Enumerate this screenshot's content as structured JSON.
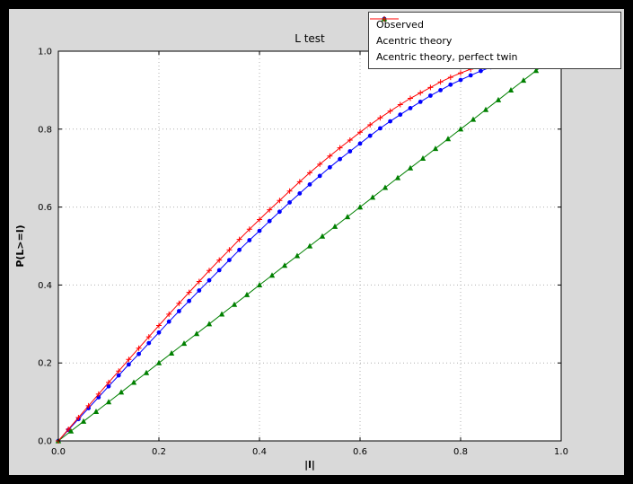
{
  "colors": {
    "outer_bg": "#000000",
    "figure_bg": "#d9d9d9",
    "axes_bg": "#ffffff",
    "frame": "#000000",
    "grid": "#b0b0b0",
    "observed": "#0000ff",
    "acentric_theory": "#008000",
    "perfect_twin": "#ff0000"
  },
  "chart_data": {
    "type": "line",
    "title": "L test",
    "xlabel": "|l|",
    "ylabel": "P(L>=l)",
    "xlim": [
      0,
      1
    ],
    "ylim": [
      0,
      1
    ],
    "xticks": [
      0,
      0.2,
      0.4,
      0.6,
      0.8,
      1.0
    ],
    "yticks": [
      0,
      0.2,
      0.4,
      0.6,
      0.8,
      1.0
    ],
    "grid": true,
    "legend_position": "upper right",
    "series": [
      {
        "name": "Observed",
        "color": "#0000ff",
        "marker": "circle",
        "x": [
          0,
          0.02,
          0.04,
          0.06,
          0.08,
          0.1,
          0.12,
          0.14,
          0.16,
          0.18,
          0.2,
          0.22,
          0.24,
          0.26,
          0.28,
          0.3,
          0.32,
          0.34,
          0.36,
          0.38,
          0.4,
          0.42,
          0.44,
          0.46,
          0.48,
          0.5,
          0.52,
          0.54,
          0.56,
          0.58,
          0.6,
          0.62,
          0.64,
          0.66,
          0.68,
          0.7,
          0.72,
          0.74,
          0.76,
          0.78,
          0.8,
          0.82,
          0.84,
          0.86
        ],
        "y": [
          0,
          0.028,
          0.056,
          0.084,
          0.112,
          0.14,
          0.168,
          0.196,
          0.223,
          0.251,
          0.278,
          0.306,
          0.333,
          0.359,
          0.386,
          0.412,
          0.438,
          0.464,
          0.49,
          0.515,
          0.539,
          0.564,
          0.588,
          0.612,
          0.635,
          0.658,
          0.68,
          0.702,
          0.723,
          0.743,
          0.763,
          0.783,
          0.802,
          0.82,
          0.837,
          0.854,
          0.87,
          0.886,
          0.9,
          0.914,
          0.926,
          0.938,
          0.949,
          0.959
        ]
      },
      {
        "name": "Acentric theory",
        "color": "#008000",
        "marker": "triangle",
        "x": [
          0,
          0.025,
          0.05,
          0.075,
          0.1,
          0.125,
          0.15,
          0.175,
          0.2,
          0.225,
          0.25,
          0.275,
          0.3,
          0.325,
          0.35,
          0.375,
          0.4,
          0.425,
          0.45,
          0.475,
          0.5,
          0.525,
          0.55,
          0.575,
          0.6,
          0.625,
          0.65,
          0.675,
          0.7,
          0.725,
          0.75,
          0.775,
          0.8,
          0.825,
          0.85,
          0.875,
          0.9,
          0.925,
          0.95,
          0.975,
          1.0
        ],
        "y": [
          0,
          0.025,
          0.05,
          0.075,
          0.1,
          0.125,
          0.15,
          0.175,
          0.2,
          0.225,
          0.25,
          0.275,
          0.3,
          0.325,
          0.35,
          0.375,
          0.4,
          0.425,
          0.45,
          0.475,
          0.5,
          0.525,
          0.55,
          0.575,
          0.6,
          0.625,
          0.65,
          0.675,
          0.7,
          0.725,
          0.75,
          0.775,
          0.8,
          0.825,
          0.85,
          0.875,
          0.9,
          0.925,
          0.95,
          0.975,
          1.0
        ]
      },
      {
        "name": "Acentric theory, perfect twin",
        "color": "#ff0000",
        "marker": "plus",
        "x": [
          0,
          0.02,
          0.04,
          0.06,
          0.08,
          0.1,
          0.12,
          0.14,
          0.16,
          0.18,
          0.2,
          0.22,
          0.24,
          0.26,
          0.28,
          0.3,
          0.32,
          0.34,
          0.36,
          0.38,
          0.4,
          0.42,
          0.44,
          0.46,
          0.48,
          0.5,
          0.52,
          0.54,
          0.56,
          0.58,
          0.6,
          0.62,
          0.64,
          0.66,
          0.68,
          0.7,
          0.72,
          0.74,
          0.76,
          0.78,
          0.8,
          0.82,
          0.84,
          0.86,
          0.88,
          0.9
        ],
        "y": [
          0,
          0.03,
          0.06,
          0.09,
          0.12,
          0.15,
          0.179,
          0.209,
          0.238,
          0.267,
          0.296,
          0.325,
          0.353,
          0.381,
          0.409,
          0.437,
          0.464,
          0.49,
          0.517,
          0.543,
          0.568,
          0.593,
          0.617,
          0.641,
          0.665,
          0.688,
          0.71,
          0.731,
          0.752,
          0.772,
          0.792,
          0.811,
          0.829,
          0.846,
          0.863,
          0.879,
          0.893,
          0.907,
          0.921,
          0.933,
          0.944,
          0.954,
          0.964,
          0.972,
          0.979,
          0.986
        ]
      }
    ]
  }
}
